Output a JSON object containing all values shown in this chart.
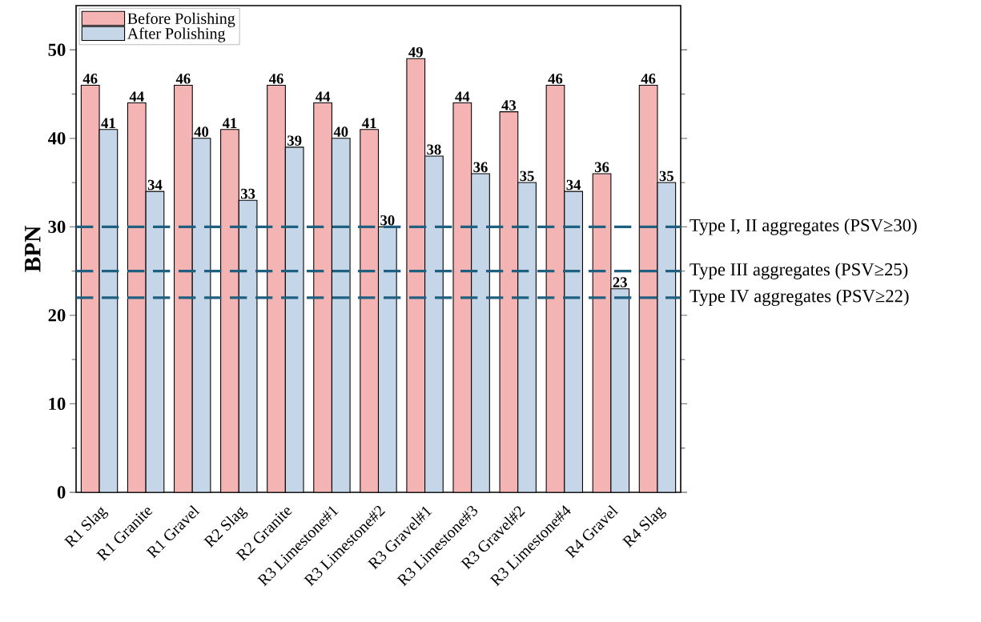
{
  "chart_data": {
    "type": "bar",
    "ylabel": "BPN",
    "categories": [
      "R1 Slag",
      "R1 Granite",
      "R1 Gravel",
      "R2 Slag",
      "R2 Granite",
      "R3 Limestone#1",
      "R3 Limestone#2",
      "R3 Gravel#1",
      "R3 Limestone#3",
      "R3 Gravel#2",
      "R3 Limestone#4",
      "R4 Gravel",
      "R4 Slag"
    ],
    "series": [
      {
        "name": "Before Polishing",
        "color": "#f4b4b4",
        "values": [
          46,
          44,
          46,
          41,
          46,
          44,
          41,
          49,
          44,
          43,
          46,
          36,
          46
        ]
      },
      {
        "name": "After Polishing",
        "color": "#c4d6e8",
        "values": [
          41,
          34,
          40,
          33,
          39,
          40,
          30,
          38,
          36,
          35,
          34,
          23,
          35
        ]
      }
    ],
    "ylim": [
      0,
      55
    ],
    "yticks": [
      0,
      10,
      20,
      30,
      40,
      50
    ],
    "ref_lines": [
      {
        "axis": "y",
        "value": 30,
        "label": "Type  I, II aggregates (PSV≥30)",
        "color": "#1f5f80",
        "line_style": "dashed"
      },
      {
        "axis": "y",
        "value": 25,
        "label": "Type  III aggregates (PSV≥25)",
        "color": "#1f5f80",
        "line_style": "dashed"
      },
      {
        "axis": "y",
        "value": 22,
        "label": "Type  IV aggregates (PSV≥22)",
        "color": "#1f5f80",
        "line_style": "dashed"
      }
    ],
    "data_labels": true,
    "legend": "top left",
    "grid": false
  }
}
